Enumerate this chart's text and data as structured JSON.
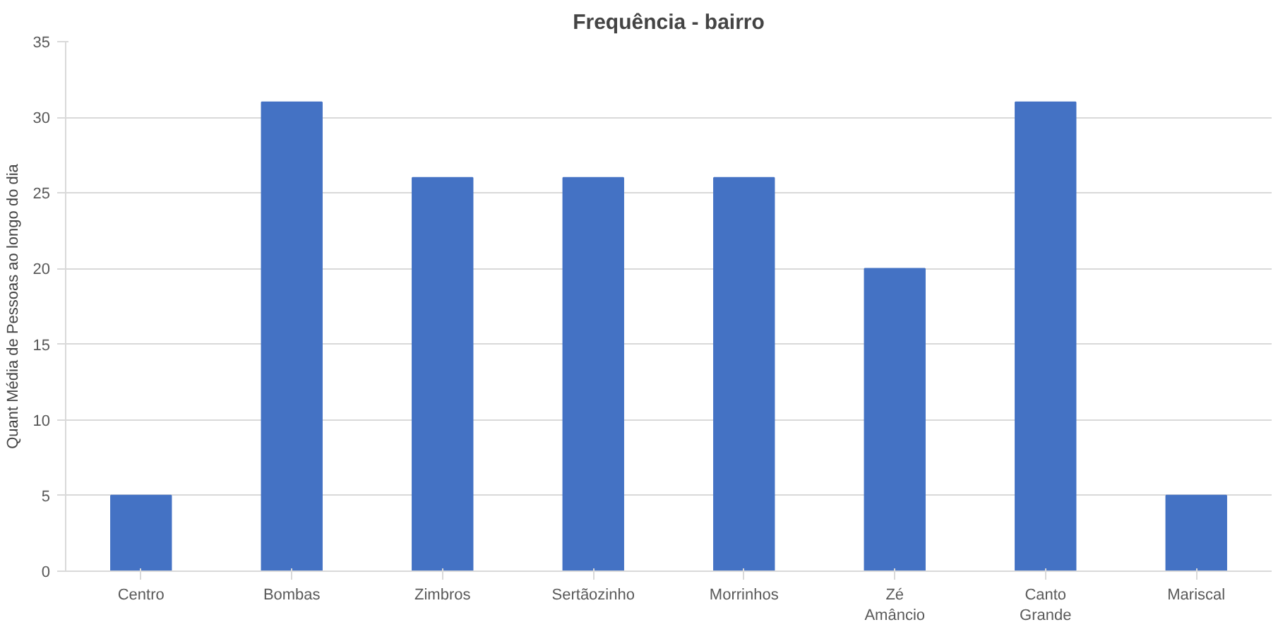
{
  "chart_data": {
    "type": "bar",
    "title": "Frequência - bairro",
    "ylabel": "Quant Média de Pessoas ao longo do dia",
    "categories": [
      "Centro",
      "Bombas",
      "Zimbros",
      "Sertãozinho",
      "Morrinhos",
      "Zé Amâncio",
      "Canto Grande",
      "Mariscal"
    ],
    "values": [
      5,
      31,
      26,
      26,
      26,
      20,
      31,
      5
    ],
    "color": "#4472c4",
    "ylim": [
      0,
      35
    ],
    "yticks": [
      0,
      5,
      10,
      15,
      20,
      25,
      30,
      35
    ],
    "grid": "y"
  }
}
